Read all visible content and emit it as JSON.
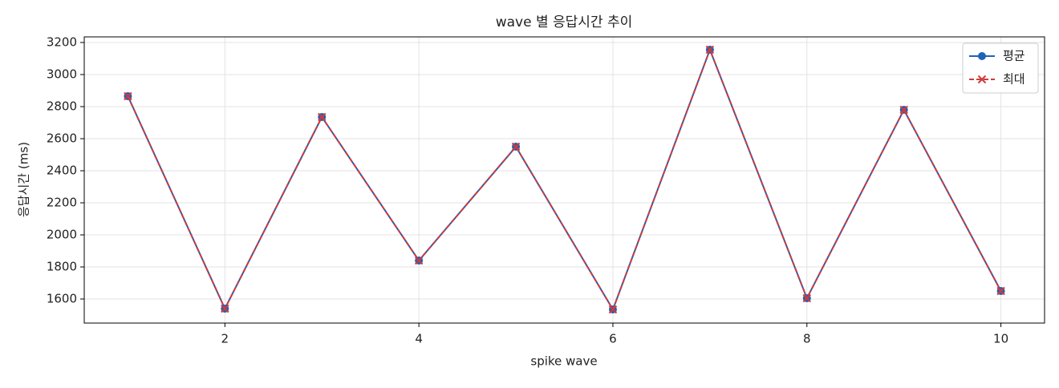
{
  "chart_data": {
    "type": "line",
    "title": "wave 별 응답시간 추이",
    "x_label": "spike wave",
    "y_label": "응답시간 (ms)",
    "x": [
      1,
      2,
      3,
      4,
      5,
      6,
      7,
      8,
      9,
      10
    ],
    "series": [
      {
        "name": "평균",
        "color": "#1f62b8",
        "marker": "circle",
        "dashed": false,
        "values": [
          2865,
          1540,
          2735,
          1840,
          2550,
          1535,
          3155,
          1605,
          2780,
          1650
        ]
      },
      {
        "name": "최대",
        "color": "#d13a3a",
        "marker": "cross",
        "dashed": true,
        "values": [
          2865,
          1540,
          2735,
          1840,
          2550,
          1535,
          3155,
          1605,
          2780,
          1650
        ]
      }
    ],
    "xlim": [
      0.55,
      10.45
    ],
    "ylim": [
      1450,
      3235
    ],
    "xticks": [
      2,
      4,
      6,
      8,
      10
    ],
    "yticks": [
      1600,
      1800,
      2000,
      2200,
      2400,
      2600,
      2800,
      3000,
      3200
    ],
    "grid": true,
    "legend": "upper right"
  }
}
